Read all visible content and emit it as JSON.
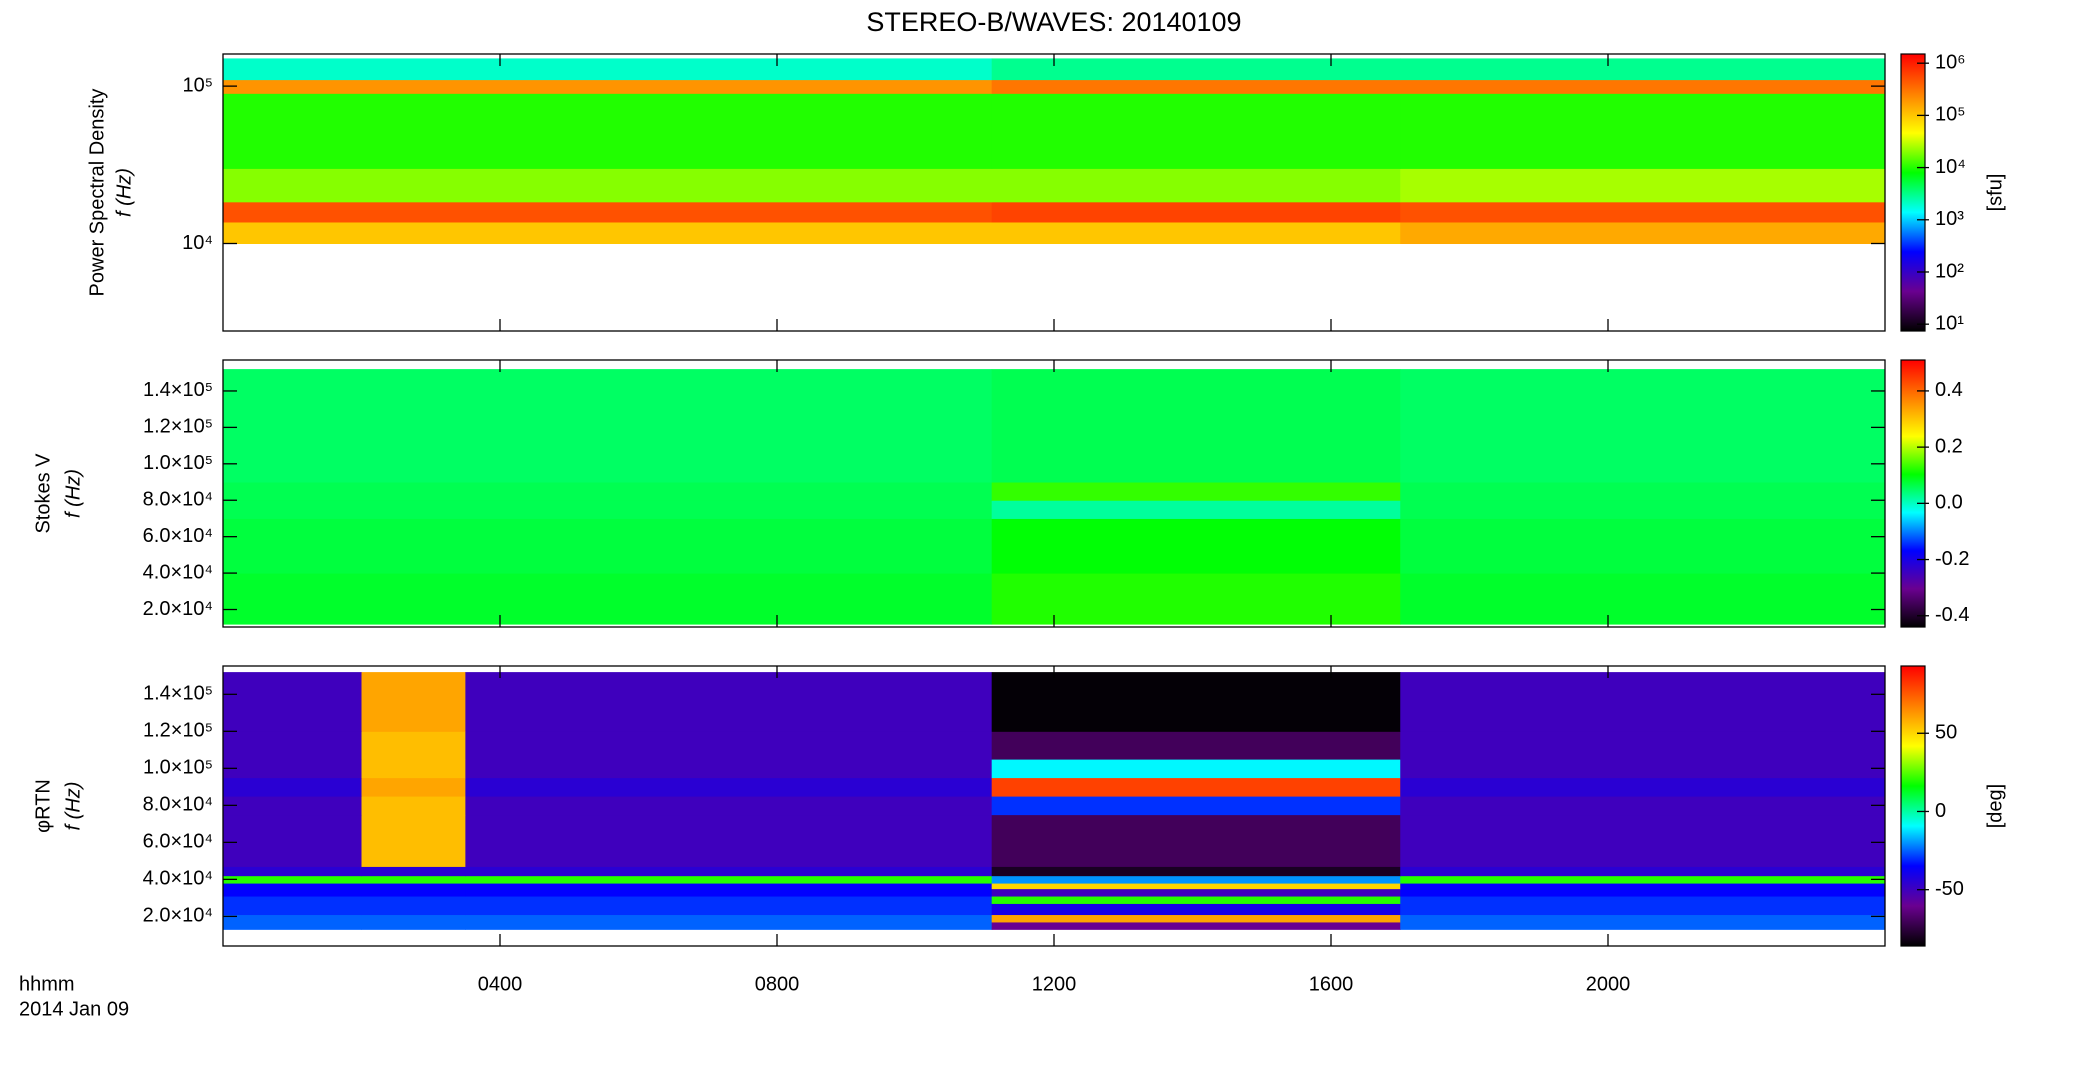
{
  "chart_data": [
    {
      "type": "heatmap",
      "title": "STEREO-B/WAVES: 20140109",
      "ylabel": "Power Spectral Density",
      "ylabel2": "f (Hz)",
      "ylog": true,
      "ylim": [
        2780,
        160000
      ],
      "yticks": [
        {
          "value": 10000,
          "label": "10⁴"
        },
        {
          "value": 100000,
          "label": "10⁵"
        }
      ],
      "xlim": [
        0,
        24
      ],
      "x_edges": [
        0,
        11.1,
        17,
        24
      ],
      "y_edges": [
        10000,
        13700,
        18400,
        30000,
        90000,
        110000,
        150000
      ],
      "z": [
        [
          100000,
          100000,
          150000
        ],
        [
          500000,
          600000,
          500000
        ],
        [
          20000,
          20000,
          25000
        ],
        [
          10000,
          10000,
          10000
        ],
        [
          200000,
          300000,
          300000
        ],
        [
          2000,
          3000,
          3000
        ]
      ],
      "zlog": true,
      "zlim": [
        7.4,
        1500000
      ],
      "zticks": [
        {
          "value": 10,
          "label": "10¹"
        },
        {
          "value": 100,
          "label": "10²"
        },
        {
          "value": 1000,
          "label": "10³"
        },
        {
          "value": 10000,
          "label": "10⁴"
        },
        {
          "value": 100000,
          "label": "10⁵"
        },
        {
          "value": 1000000,
          "label": "10⁶"
        }
      ],
      "zlabel": "[sfu]",
      "colormap": [
        "#000000",
        "#6a0090",
        "#0000ff",
        "#00ffff",
        "#00ff00",
        "#ffff00",
        "#ff8000",
        "#ff0000"
      ]
    },
    {
      "type": "heatmap",
      "ylabel": "Stokes V",
      "ylabel2": "f (Hz)",
      "ylog": false,
      "ylim": [
        10400,
        157000
      ],
      "yticks": [
        {
          "value": 20000,
          "label": "2.0×10⁴"
        },
        {
          "value": 40000,
          "label": "4.0×10⁴"
        },
        {
          "value": 60000,
          "label": "6.0×10⁴"
        },
        {
          "value": 80000,
          "label": "8.0×10⁴"
        },
        {
          "value": 100000,
          "label": "1.0×10⁵"
        },
        {
          "value": 120000,
          "label": "1.2×10⁵"
        },
        {
          "value": 140000,
          "label": "1.4×10⁵"
        }
      ],
      "xlim": [
        0,
        24
      ],
      "x_edges": [
        0,
        11.1,
        17,
        24
      ],
      "y_edges": [
        12000,
        40000,
        70000,
        80000,
        90000,
        152000
      ],
      "z": [
        [
          0.08,
          0.12,
          0.08
        ],
        [
          0.07,
          0.1,
          0.07
        ],
        [
          0.06,
          0.02,
          0.06
        ],
        [
          0.06,
          0.13,
          0.06
        ],
        [
          0.05,
          0.06,
          0.05
        ]
      ],
      "zlog": false,
      "zlim": [
        -0.44,
        0.51
      ],
      "zticks": [
        {
          "value": -0.4,
          "label": "-0.4"
        },
        {
          "value": -0.2,
          "label": "-0.2"
        },
        {
          "value": 0,
          "label": "0.0"
        },
        {
          "value": 0.2,
          "label": "0.2"
        },
        {
          "value": 0.4,
          "label": "0.4"
        }
      ],
      "colormap": [
        "#000000",
        "#6a0090",
        "#0000ff",
        "#00ffff",
        "#00ff00",
        "#ffff00",
        "#ff8000",
        "#ff0000"
      ]
    },
    {
      "type": "heatmap",
      "ylabel": "φRTN",
      "ylabel2": "f (Hz)",
      "ylog": false,
      "ylim": [
        4000,
        155300
      ],
      "yticks": [
        {
          "value": 20000,
          "label": "2.0×10⁴"
        },
        {
          "value": 40000,
          "label": "4.0×10⁴"
        },
        {
          "value": 60000,
          "label": "6.0×10⁴"
        },
        {
          "value": 80000,
          "label": "8.0×10⁴"
        },
        {
          "value": 100000,
          "label": "1.0×10⁵"
        },
        {
          "value": 120000,
          "label": "1.2×10⁵"
        },
        {
          "value": 140000,
          "label": "1.4×10⁵"
        }
      ],
      "xlim": [
        0,
        24
      ],
      "xticks": [
        {
          "value": 4,
          "label": "0400"
        },
        {
          "value": 8,
          "label": "0800"
        },
        {
          "value": 12,
          "label": "1200"
        },
        {
          "value": 16,
          "label": "1600"
        },
        {
          "value": 20,
          "label": "2000"
        }
      ],
      "xlabel": "hhmm",
      "date_label": "2014 Jan 09",
      "x_edges": [
        0,
        2,
        3.5,
        11.1,
        17,
        24
      ],
      "y_edges": [
        13000,
        17000,
        21000,
        27000,
        31000,
        35000,
        38000,
        42000,
        47000,
        75000,
        85000,
        95000,
        105000,
        120000,
        152000
      ],
      "z": [
        [
          -25,
          -25,
          -25,
          -60,
          -25
        ],
        [
          -25,
          -25,
          -25,
          60,
          -25
        ],
        [
          -30,
          -30,
          -30,
          -40,
          -30
        ],
        [
          -30,
          -30,
          -30,
          20,
          -30
        ],
        [
          -35,
          -35,
          -35,
          -50,
          -35
        ],
        [
          -35,
          -35,
          -35,
          50,
          -35
        ],
        [
          20,
          20,
          20,
          -20,
          20
        ],
        [
          -45,
          -45,
          -45,
          -80,
          -45
        ],
        [
          -50,
          55,
          -50,
          -70,
          -50
        ],
        [
          -50,
          55,
          -50,
          -30,
          -50
        ],
        [
          -45,
          60,
          -45,
          80,
          -45
        ],
        [
          -50,
          55,
          -50,
          -10,
          -50
        ],
        [
          -50,
          55,
          -50,
          -70,
          -50
        ],
        [
          -50,
          60,
          -50,
          -85,
          -50
        ]
      ],
      "zlog": false,
      "zlim": [
        -86,
        93
      ],
      "zticks": [
        -50,
        0,
        50
      ],
      "zlabel": "[deg]",
      "colormap": [
        "#000000",
        "#6a0090",
        "#0000ff",
        "#00ffff",
        "#00ff00",
        "#ffff00",
        "#ff8000",
        "#ff0000"
      ]
    }
  ]
}
